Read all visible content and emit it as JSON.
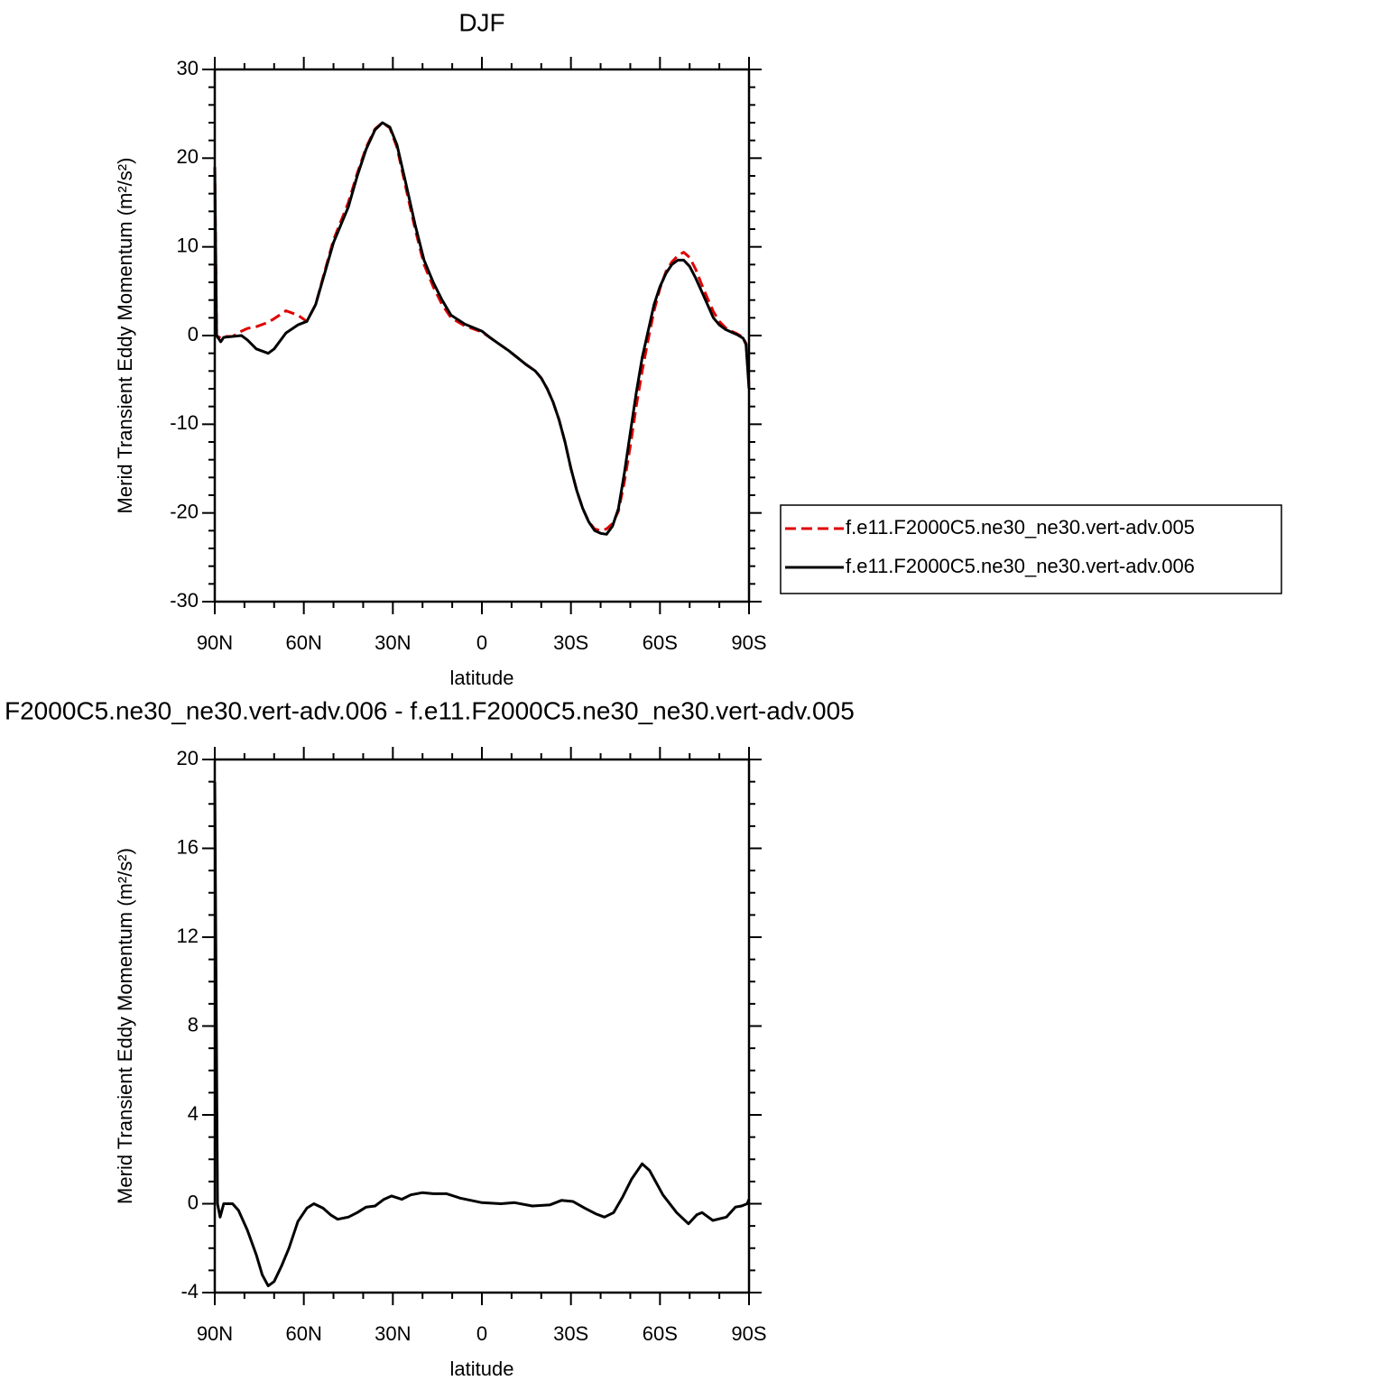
{
  "chart_data": [
    {
      "type": "line",
      "title": "DJF",
      "xlabel": "latitude",
      "ylabel": "Merid Transient Eddy Momentum (m²/s²)",
      "xlim": [
        90,
        -90
      ],
      "xticks": [
        {
          "value": 90,
          "label": "90N"
        },
        {
          "value": 60,
          "label": "60N"
        },
        {
          "value": 30,
          "label": "30N"
        },
        0,
        {
          "value": -30,
          "label": "30S"
        },
        {
          "value": -60,
          "label": "60S"
        },
        {
          "value": -90,
          "label": "90S"
        }
      ],
      "ylim": [
        -30,
        30
      ],
      "yticks": [
        -30,
        -20,
        -10,
        0,
        10,
        20,
        30
      ],
      "x_minor_step": 10,
      "y_minor_step": 2,
      "legend": "right",
      "x": [
        90,
        89.4,
        88,
        87,
        84,
        81,
        79,
        76,
        72,
        70,
        66,
        62,
        59,
        56,
        53,
        50,
        45,
        42,
        39,
        36,
        33.5,
        31,
        28.6,
        25.5,
        22.5,
        19.5,
        16.4,
        13.4,
        10.4,
        5.8,
        0,
        -3,
        -6,
        -9,
        -12,
        -15,
        -18,
        -20,
        -22,
        -24,
        -26,
        -28,
        -30,
        -32,
        -34,
        -36,
        -38,
        -40,
        -42,
        -44,
        -46,
        -48,
        -50,
        -52,
        -54,
        -56,
        -58,
        -60,
        -62,
        -64,
        -66,
        -68,
        -70,
        -72,
        -74,
        -76,
        -78,
        -80,
        -82,
        -84,
        -86,
        -88,
        -89,
        -90
      ],
      "series": [
        {
          "name": "f.e11.F2000C5.ne30_ne30.vert-adv.005",
          "color": "#e00000",
          "dashed": true,
          "values": [
            19,
            0,
            -0.3,
            -0.1,
            -0.1,
            0.5,
            0.8,
            1.0,
            1.5,
            1.9,
            2.8,
            2.3,
            1.6,
            3.5,
            7.2,
            10.8,
            15,
            18.3,
            21.2,
            23.3,
            24,
            23.4,
            21.2,
            16.5,
            12,
            8,
            5.5,
            3.5,
            2.0,
            1.1,
            0.4,
            -0.3,
            -1.0,
            -1.7,
            -2.5,
            -3.3,
            -4.0,
            -4.8,
            -6,
            -7.5,
            -9.5,
            -12,
            -15,
            -17.5,
            -19.5,
            -21,
            -21.8,
            -22,
            -21.8,
            -21.2,
            -19.8,
            -16.5,
            -12.5,
            -8,
            -4,
            -0.5,
            2.8,
            5.3,
            7.2,
            8.3,
            9,
            9.4,
            8.8,
            7.5,
            5.8,
            4.2,
            2.7,
            1.6,
            0.9,
            0.5,
            0.2,
            -0.2,
            -0.9,
            -5.5
          ]
        },
        {
          "name": "f.e11.F2000C5.ne30_ne30.vert-adv.006",
          "color": "#000000",
          "dashed": false,
          "values": [
            19,
            0,
            -0.7,
            -0.2,
            -0.1,
            0,
            -0.5,
            -1.5,
            -2.0,
            -1.5,
            0.3,
            1.2,
            1.6,
            3.5,
            7,
            10.5,
            14.5,
            18,
            21,
            23.2,
            24,
            23.5,
            21.5,
            17,
            12.5,
            8.5,
            6,
            4,
            2.3,
            1.3,
            0.5,
            -0.3,
            -1.0,
            -1.7,
            -2.5,
            -3.3,
            -4.0,
            -4.8,
            -6,
            -7.5,
            -9.5,
            -12,
            -15,
            -17.5,
            -19.5,
            -21,
            -22,
            -22.3,
            -22.4,
            -21.5,
            -19.5,
            -15.5,
            -11,
            -6.5,
            -2.5,
            0.5,
            3.5,
            5.5,
            7,
            8,
            8.5,
            8.5,
            7.8,
            6.5,
            5,
            3.5,
            2,
            1.2,
            0.7,
            0.4,
            0.1,
            -0.3,
            -1,
            -6
          ]
        }
      ]
    },
    {
      "type": "line",
      "title": "F2000C5.ne30_ne30.vert-adv.006 - f.e11.F2000C5.ne30_ne30.vert-adv.005",
      "xlabel": "latitude",
      "ylabel": "Merid Transient Eddy Momentum (m²/s²)",
      "xlim": [
        90,
        -90
      ],
      "xticks": [
        {
          "value": 90,
          "label": "90N"
        },
        {
          "value": 60,
          "label": "60N"
        },
        {
          "value": 30,
          "label": "30N"
        },
        0,
        {
          "value": -30,
          "label": "30S"
        },
        {
          "value": -60,
          "label": "60S"
        },
        {
          "value": -90,
          "label": "90S"
        }
      ],
      "ylim": [
        -4,
        20
      ],
      "yticks": [
        -4,
        0,
        4,
        8,
        12,
        16,
        20
      ],
      "x_minor_step": 10,
      "y_minor_step": 1,
      "x": [
        90,
        89.1,
        88.2,
        87,
        84,
        82,
        79,
        76,
        74,
        72,
        70,
        67.5,
        65,
        62,
        59,
        56.6,
        53.5,
        51,
        48.6,
        45,
        42,
        39,
        36,
        33,
        30.4,
        27,
        24,
        20,
        16.4,
        11.9,
        7.3,
        0,
        -6.4,
        -11,
        -17,
        -23,
        -26.8,
        -30.7,
        -34.7,
        -38.3,
        -41.3,
        -44.4,
        -47.4,
        -50.4,
        -54,
        -56.5,
        -61,
        -65.6,
        -69.6,
        -72.4,
        -74.2,
        -77.8,
        -82.4,
        -85.4,
        -87.5,
        -89.4,
        -90
      ],
      "series": [
        {
          "color": "#000000",
          "dashed": false,
          "values": [
            19,
            0,
            -0.6,
            0,
            0,
            -0.3,
            -1.2,
            -2.3,
            -3.2,
            -3.7,
            -3.5,
            -2.8,
            -2.0,
            -0.8,
            -0.2,
            0,
            -0.2,
            -0.5,
            -0.7,
            -0.6,
            -0.4,
            -0.15,
            -0.1,
            0.2,
            0.35,
            0.2,
            0.4,
            0.5,
            0.45,
            0.45,
            0.25,
            0.05,
            0,
            0.05,
            -0.1,
            -0.05,
            0.15,
            0.1,
            -0.2,
            -0.45,
            -0.6,
            -0.4,
            0.3,
            1.1,
            1.8,
            1.5,
            0.4,
            -0.4,
            -0.9,
            -0.5,
            -0.4,
            -0.75,
            -0.6,
            -0.15,
            -0.1,
            0,
            0.2
          ]
        }
      ]
    }
  ]
}
